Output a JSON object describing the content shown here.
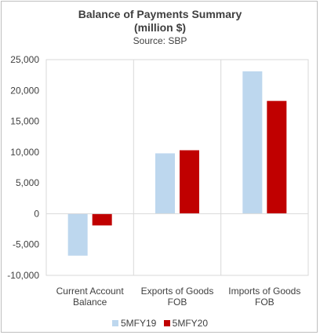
{
  "chart_data": {
    "type": "bar",
    "title_line1": "Balance of Payments  Summary",
    "title_line2": "(million $)",
    "subtitle": "Source: SBP",
    "categories": [
      [
        "Current Account",
        "Balance"
      ],
      [
        "Exports of Goods",
        "FOB"
      ],
      [
        "Imports of Goods",
        "FOB"
      ]
    ],
    "series": [
      {
        "name": "5MFY19",
        "color": "#bdd7ee",
        "values": [
          -6800,
          9800,
          23100
        ]
      },
      {
        "name": "5MFY20",
        "color": "#c00000",
        "values": [
          -1900,
          10300,
          18300
        ]
      }
    ],
    "ylim": [
      -10000,
      25000
    ],
    "yticks": [
      -10000,
      -5000,
      0,
      5000,
      10000,
      15000,
      20000,
      25000
    ],
    "ytick_labels": [
      "-10,000",
      "-5,000",
      "0",
      "5,000",
      "10,000",
      "15,000",
      "20,000",
      "25,000"
    ],
    "grid": "vertical category separators",
    "legend": "bottom"
  }
}
